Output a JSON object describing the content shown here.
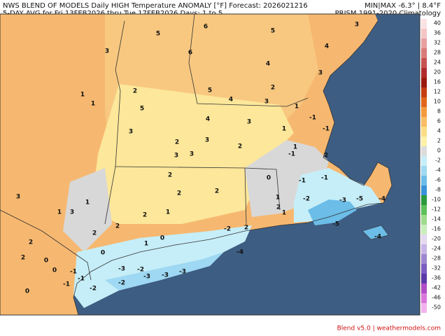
{
  "header": {
    "title_left": "NWS BLEND OF MODELS Daily HIGH Temperature ANOMALY [°F] Forecast: 2026021216",
    "subtitle_left": "5-DAY AVG for Fri 13FEB2026 thru Tue 17FEB2026  Days: 1 to 5",
    "title_right": "MIN|MAX -6.3° | 8.4°F",
    "subtitle_right": "PRISM 1991-2020 Climatology"
  },
  "colorbar": {
    "labels": [
      40,
      36,
      32,
      28,
      24,
      20,
      16,
      12,
      10,
      8,
      6,
      4,
      2,
      0,
      -2,
      -4,
      -6,
      -8,
      -10,
      -12,
      -14,
      -16,
      -20,
      -24,
      -28,
      -32,
      -36,
      -42,
      -46,
      -50
    ],
    "colors": [
      "#fbe3e3",
      "#f4c6c6",
      "#e8a0a0",
      "#d97a7a",
      "#c65252",
      "#b02c2c",
      "#9a1a10",
      "#c43c10",
      "#e0661c",
      "#f39a3c",
      "#f8bd64",
      "#fcdc86",
      "#fdf1a8",
      "#dcdcdc",
      "#c6eef8",
      "#9ed8f2",
      "#6cbde8",
      "#3a93d8",
      "#2a9a3c",
      "#5ec05a",
      "#9edb8c",
      "#c9edbc",
      "#e4d8f2",
      "#c8b4e6",
      "#9e86d0",
      "#7c5cc0",
      "#5a3aa8",
      "#b04cc4",
      "#d878da",
      "#f2b2ee"
    ]
  },
  "map": {
    "values": [
      5,
      6,
      5,
      3,
      3,
      6,
      4,
      4,
      3,
      1,
      2,
      5,
      4,
      2,
      1,
      3,
      5,
      1,
      -1,
      4,
      3,
      3,
      1,
      -1,
      2,
      3,
      2,
      1,
      -1,
      3,
      3,
      2,
      2,
      0,
      -1,
      -1,
      3,
      1,
      2,
      2,
      1,
      3,
      2,
      1,
      1,
      2,
      -2,
      -3,
      -5,
      -4,
      2,
      2,
      1,
      0,
      -2,
      2,
      -5,
      1,
      2,
      2,
      0,
      0,
      -4,
      -4,
      0,
      -1,
      -1,
      -1,
      0,
      -3,
      -2,
      -2,
      -2,
      -3,
      -3,
      -3
    ]
  },
  "footer": "Blend v5.0 | weathermodels.com"
}
